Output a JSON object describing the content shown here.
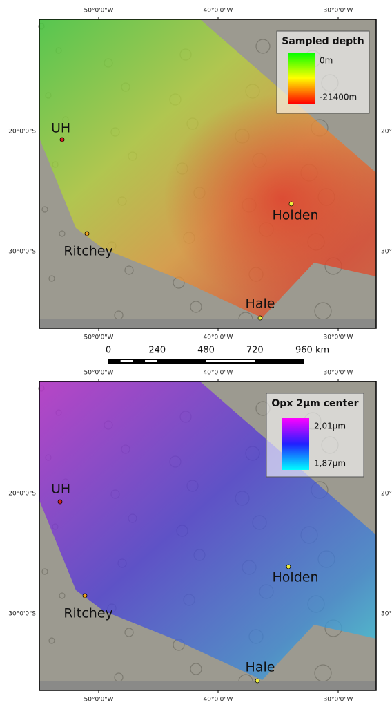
{
  "maps": [
    {
      "legend": {
        "title": "Sampled depth",
        "top_label": "0m",
        "bottom_label": "-21400m"
      },
      "places": [
        {
          "label": "UH"
        },
        {
          "label": "Ritchey"
        },
        {
          "label": "Holden"
        },
        {
          "label": "Hale"
        }
      ],
      "lon_labels": [
        "50°0'0\"W",
        "40°0'0\"W",
        "30°0'0\"W"
      ],
      "lat_labels": [
        "20°0'0\"S",
        "30°0'0\"S"
      ]
    },
    {
      "legend": {
        "title": "Opx 2µm center",
        "top_label": "2,01µm",
        "bottom_label": "1,87µm"
      },
      "places": [
        {
          "label": "UH"
        },
        {
          "label": "Ritchey"
        },
        {
          "label": "Holden"
        },
        {
          "label": "Hale"
        }
      ],
      "lon_labels": [
        "50°0'0\"W",
        "40°0'0\"W",
        "30°0'0\"W"
      ],
      "lat_labels": [
        "20°0'0\"S",
        "30°0'0\"S"
      ]
    }
  ],
  "scale_bar": {
    "ticks": [
      0,
      240,
      480,
      720,
      {
        "value": 960,
        "label": "960 km"
      }
    ]
  }
}
